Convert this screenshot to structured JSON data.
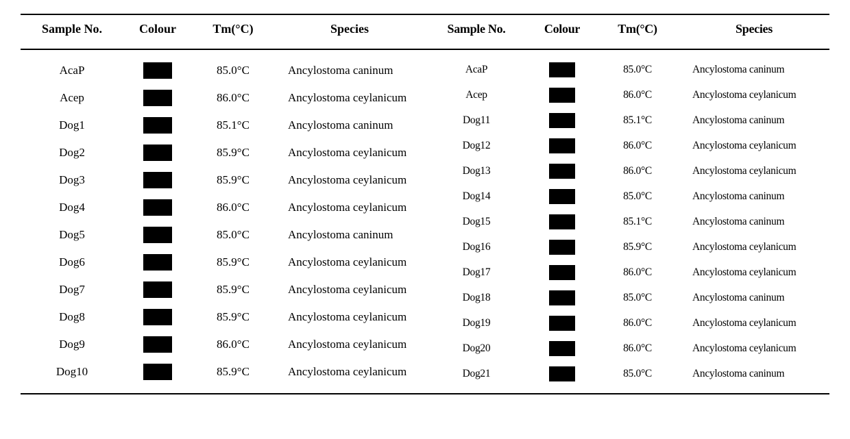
{
  "headers": {
    "sample": "Sample No.",
    "colour": "Colour",
    "tm": "Tm(°C)",
    "species": "Species"
  },
  "swatch_color": "#000000",
  "left": [
    {
      "sample": "AcaP",
      "tm": "85.0°C",
      "species": "Ancylostoma caninum"
    },
    {
      "sample": "Acep",
      "tm": "86.0°C",
      "species": "Ancylostoma ceylanicum"
    },
    {
      "sample": "Dog1",
      "tm": "85.1°C",
      "species": "Ancylostoma caninum"
    },
    {
      "sample": "Dog2",
      "tm": "85.9°C",
      "species": "Ancylostoma ceylanicum"
    },
    {
      "sample": "Dog3",
      "tm": "85.9°C",
      "species": "Ancylostoma ceylanicum"
    },
    {
      "sample": "Dog4",
      "tm": "86.0°C",
      "species": "Ancylostoma ceylanicum"
    },
    {
      "sample": "Dog5",
      "tm": "85.0°C",
      "species": "Ancylostoma caninum"
    },
    {
      "sample": "Dog6",
      "tm": "85.9°C",
      "species": "Ancylostoma ceylanicum"
    },
    {
      "sample": "Dog7",
      "tm": "85.9°C",
      "species": "Ancylostoma ceylanicum"
    },
    {
      "sample": "Dog8",
      "tm": "85.9°C",
      "species": "Ancylostoma ceylanicum"
    },
    {
      "sample": "Dog9",
      "tm": "86.0°C",
      "species": "Ancylostoma ceylanicum"
    },
    {
      "sample": "Dog10",
      "tm": "85.9°C",
      "species": "Ancylostoma ceylanicum"
    }
  ],
  "right": [
    {
      "sample": "AcaP",
      "tm": "85.0°C",
      "species": "Ancylostoma caninum"
    },
    {
      "sample": "Acep",
      "tm": "86.0°C",
      "species": "Ancylostoma ceylanicum"
    },
    {
      "sample": "Dog11",
      "tm": "85.1°C",
      "species": "Ancylostoma caninum"
    },
    {
      "sample": "Dog12",
      "tm": "86.0°C",
      "species": "Ancylostoma ceylanicum"
    },
    {
      "sample": "Dog13",
      "tm": "86.0°C",
      "species": "Ancylostoma ceylanicum"
    },
    {
      "sample": "Dog14",
      "tm": "85.0°C",
      "species": "Ancylostoma caninum"
    },
    {
      "sample": "Dog15",
      "tm": "85.1°C",
      "species": "Ancylostoma caninum"
    },
    {
      "sample": "Dog16",
      "tm": "85.9°C",
      "species": "Ancylostoma ceylanicum"
    },
    {
      "sample": "Dog17",
      "tm": "86.0°C",
      "species": "Ancylostoma ceylanicum"
    },
    {
      "sample": "Dog18",
      "tm": "85.0°C",
      "species": "Ancylostoma caninum"
    },
    {
      "sample": "Dog19",
      "tm": "86.0°C",
      "species": "Ancylostoma ceylanicum"
    },
    {
      "sample": "Dog20",
      "tm": "86.0°C",
      "species": "Ancylostoma ceylanicum"
    },
    {
      "sample": "Dog21",
      "tm": "85.0°C",
      "species": "Ancylostoma caninum"
    }
  ]
}
